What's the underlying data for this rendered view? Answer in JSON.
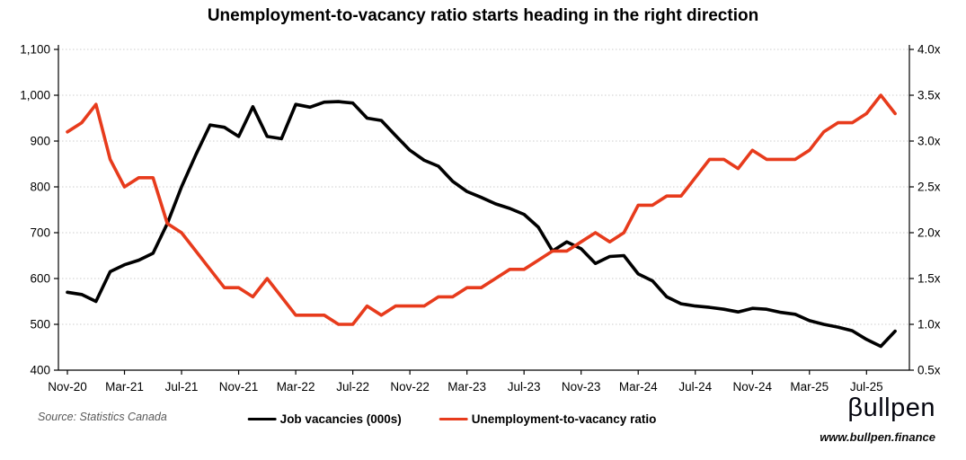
{
  "title": "Unemployment-to-vacancy ratio starts heading in the right direction",
  "source": "Source: Statistics Canada",
  "brand": {
    "logo": "βullpen",
    "url": "www.bullpen.finance"
  },
  "colors": {
    "vacancies": "#000000",
    "ratio": "#E73B1C",
    "grid": "#cccccc",
    "axis": "#000000"
  },
  "chart_data": {
    "type": "line",
    "title": "Unemployment-to-vacancy ratio starts heading in the right direction",
    "x": [
      "Nov-20",
      "Dec-20",
      "Jan-21",
      "Feb-21",
      "Mar-21",
      "Apr-21",
      "May-21",
      "Jun-21",
      "Jul-21",
      "Aug-21",
      "Sep-21",
      "Oct-21",
      "Nov-21",
      "Dec-21",
      "Jan-22",
      "Feb-22",
      "Mar-22",
      "Apr-22",
      "May-22",
      "Jun-22",
      "Jul-22",
      "Aug-22",
      "Sep-22",
      "Oct-22",
      "Nov-22",
      "Dec-22",
      "Jan-23",
      "Feb-23",
      "Mar-23",
      "Apr-23",
      "May-23",
      "Jun-23",
      "Jul-23",
      "Aug-23",
      "Sep-23",
      "Oct-23",
      "Nov-23",
      "Dec-23",
      "Jan-24",
      "Feb-24",
      "Mar-24",
      "Apr-24",
      "May-24",
      "Jun-24",
      "Jul-24",
      "Aug-24",
      "Sep-24",
      "Oct-24",
      "Nov-24",
      "Dec-24",
      "Jan-25",
      "Feb-25",
      "Mar-25",
      "Apr-25",
      "May-25",
      "Jun-25",
      "Jul-25",
      "Aug-25",
      "Sep-25"
    ],
    "x_tick_labels": [
      "Nov-20",
      "Mar-21",
      "Jul-21",
      "Nov-21",
      "Mar-22",
      "Jul-22",
      "Nov-22",
      "Mar-23",
      "Jul-23",
      "Nov-23",
      "Mar-24",
      "Jul-24",
      "Nov-24",
      "Mar-25",
      "Jul-25"
    ],
    "x_tick_every": 4,
    "series": [
      {
        "name": "Job vacancies (000s)",
        "axis": "left",
        "color": "#000000",
        "values": [
          570,
          565,
          550,
          615,
          630,
          640,
          655,
          720,
          800,
          870,
          935,
          930,
          910,
          975,
          910,
          905,
          980,
          974,
          985,
          986,
          983,
          950,
          945,
          912,
          880,
          858,
          845,
          812,
          790,
          777,
          763,
          753,
          740,
          712,
          660,
          680,
          665,
          633,
          648,
          650,
          610,
          595,
          560,
          545,
          540,
          537,
          533,
          527,
          535,
          533,
          526,
          522,
          508,
          500,
          494,
          486,
          467,
          452,
          485
        ]
      },
      {
        "name": "Unemployment-to-vacancy ratio",
        "axis": "right",
        "color": "#E73B1C",
        "values": [
          3.1,
          3.2,
          3.4,
          2.8,
          2.5,
          2.6,
          2.6,
          2.1,
          2.0,
          1.8,
          1.6,
          1.4,
          1.4,
          1.3,
          1.5,
          1.3,
          1.1,
          1.1,
          1.1,
          1.0,
          1.0,
          1.2,
          1.1,
          1.2,
          1.2,
          1.2,
          1.3,
          1.3,
          1.4,
          1.4,
          1.5,
          1.6,
          1.6,
          1.7,
          1.8,
          1.8,
          1.9,
          2.0,
          1.9,
          2.0,
          2.3,
          2.3,
          2.4,
          2.4,
          2.6,
          2.8,
          2.8,
          2.7,
          2.9,
          2.8,
          2.8,
          2.8,
          2.9,
          3.1,
          3.2,
          3.2,
          3.3,
          3.5,
          3.3
        ]
      }
    ],
    "left_axis": {
      "min": 400,
      "max": 1100,
      "step": 100,
      "tick_labels": [
        "400",
        "500",
        "600",
        "700",
        "800",
        "900",
        "1,000",
        "1,100"
      ]
    },
    "right_axis": {
      "min": 0.5,
      "max": 4.0,
      "step": 0.5,
      "tick_labels": [
        "0.5x",
        "1.0x",
        "1.5x",
        "2.0x",
        "2.5x",
        "3.0x",
        "3.5x",
        "4.0x"
      ]
    },
    "grid": "horizontal-dotted",
    "legend_position": "bottom"
  }
}
